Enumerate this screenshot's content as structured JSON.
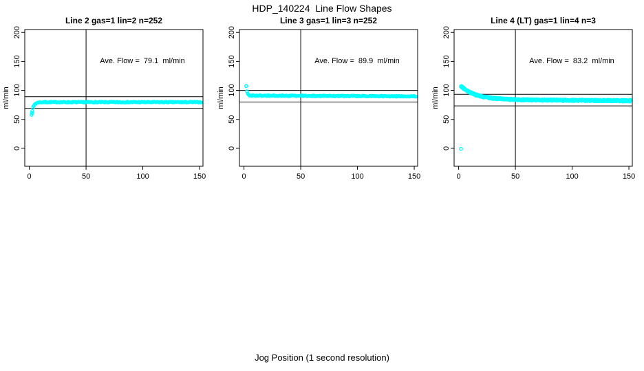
{
  "figure": {
    "title": "HDP_140224  Line Flow Shapes",
    "xlabel": "Jog Position (1 second resolution)",
    "background": "#ffffff",
    "line_color": "#000000",
    "point_color": "#00ffff"
  },
  "chart_data": [
    {
      "type": "scatter",
      "title": "Line 2 gas=1 lin=2 n=252",
      "annotation": "Ave. Flow =  79.1  ml/min",
      "ave_flow_ml_min": 79.1,
      "n_points": 252,
      "ylabel": "ml/min",
      "x_ticks": [
        0,
        50,
        100,
        150
      ],
      "y_ticks": [
        0,
        50,
        100,
        150,
        200
      ],
      "xlim": [
        -4,
        153
      ],
      "ylim": [
        -31,
        205
      ],
      "vline_x": 50,
      "hlines": [
        89.1,
        69.1
      ],
      "grid": false,
      "marker": "open-circle",
      "marker_color": "#00ffff",
      "series_model": {
        "x_start": 2,
        "x_end": 151.5,
        "plateau": 79.6,
        "amplitude": -21,
        "tau": 1.6,
        "drift_per_x": 0,
        "jitter": 0.8,
        "layers": 1,
        "points_per_layer": 252
      },
      "outlier_points": [
        [
          2,
          58
        ],
        [
          2.3,
          61
        ]
      ]
    },
    {
      "type": "scatter",
      "title": "Line 3 gas=1 lin=3 n=252",
      "annotation": "Ave. Flow =  89.9  ml/min",
      "ave_flow_ml_min": 89.9,
      "n_points": 252,
      "ylabel": "ml/min",
      "x_ticks": [
        0,
        50,
        100,
        150
      ],
      "y_ticks": [
        0,
        50,
        100,
        150,
        200
      ],
      "xlim": [
        -4,
        153
      ],
      "ylim": [
        -31,
        205
      ],
      "vline_x": 50,
      "hlines": [
        99.9,
        79.9
      ],
      "grid": false,
      "marker": "open-circle",
      "marker_color": "#00ffff",
      "series_model": {
        "x_start": 2,
        "x_end": 151.5,
        "plateau": 91.0,
        "amplitude": 16.5,
        "tau": 0.75,
        "drift_per_x": -0.008,
        "jitter": 0.8,
        "layers": 1,
        "points_per_layer": 252
      },
      "outlier_points": [
        [
          2,
          107.5
        ]
      ]
    },
    {
      "type": "scatter",
      "title": "Line 4 (LT) gas=1 lin=4 n=3",
      "annotation": "Ave. Flow =  83.2  ml/min",
      "ave_flow_ml_min": 83.2,
      "n_points": 3,
      "ylabel": "ml/min",
      "x_ticks": [
        0,
        50,
        100,
        150
      ],
      "y_ticks": [
        0,
        50,
        100,
        150,
        200
      ],
      "xlim": [
        -4,
        153
      ],
      "ylim": [
        -31,
        205
      ],
      "vline_x": 50,
      "hlines": [
        93.2,
        73.2
      ],
      "grid": false,
      "marker": "open-circle",
      "marker_color": "#00ffff",
      "series_model": {
        "x_start": 2,
        "x_end": 151.5,
        "plateau": 84.2,
        "amplitude": 23,
        "tau": 13,
        "drift_per_x": -0.014,
        "jitter": 1.5,
        "layers": 3,
        "points_per_layer": 250
      },
      "outlier_points": [
        [
          2,
          -1
        ]
      ]
    }
  ]
}
